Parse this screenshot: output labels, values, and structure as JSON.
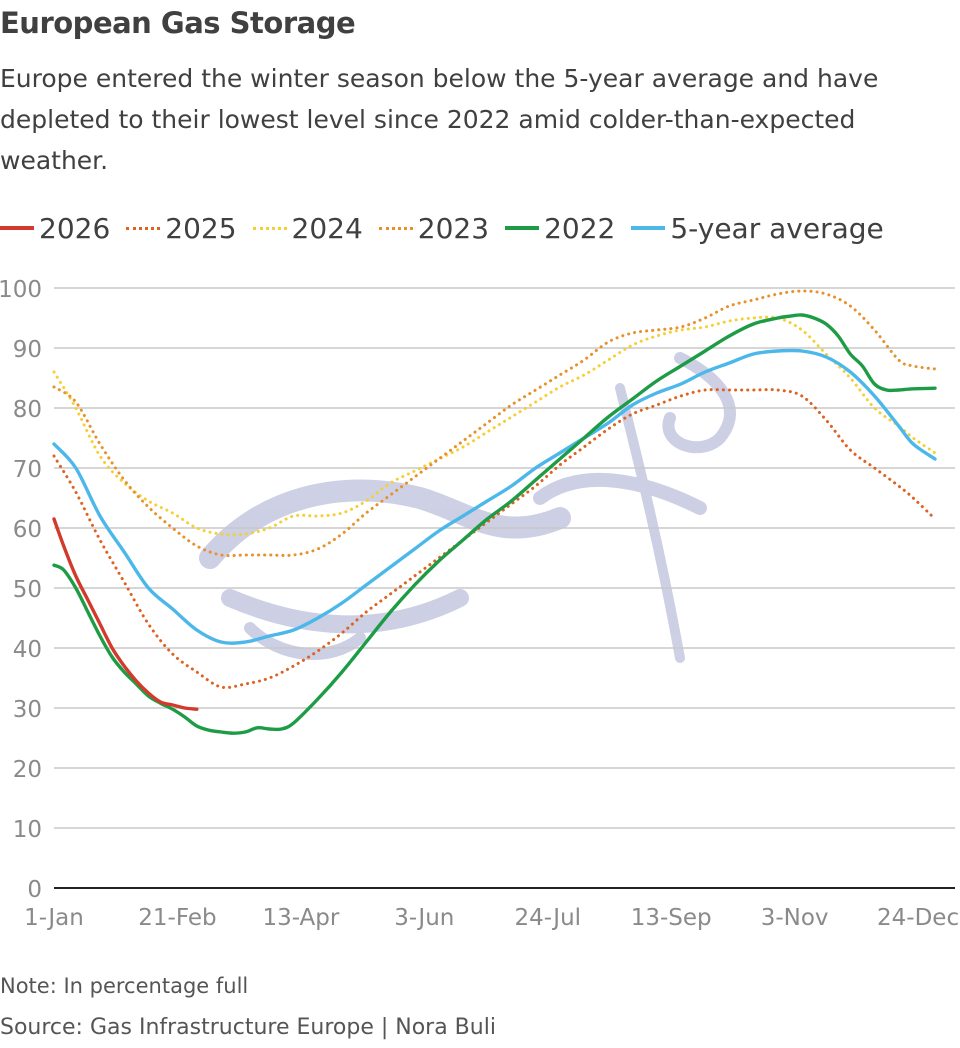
{
  "header": {
    "title": "European Gas Storage",
    "subtitle": "Europe entered the winter season below the 5-year average and have depleted to their lowest level since 2022 amid colder-than-expected weather."
  },
  "footer": {
    "note": "Note: In percentage full",
    "source": "Source: Gas Infrastructure Europe | Nora Buli"
  },
  "chart_data": {
    "type": "line",
    "title": "European Gas Storage",
    "xlabel": "",
    "ylabel": "",
    "unit": "percentage full",
    "xlim": [
      1,
      365
    ],
    "ylim": [
      0,
      100
    ],
    "grid": true,
    "legend_position": "top",
    "x_ticks": [
      {
        "label": "1-Jan",
        "day": 1
      },
      {
        "label": "21-Feb",
        "day": 52
      },
      {
        "label": "13-Apr",
        "day": 103
      },
      {
        "label": "3-Jun",
        "day": 154
      },
      {
        "label": "24-Jul",
        "day": 205
      },
      {
        "label": "13-Sep",
        "day": 256
      },
      {
        "label": "3-Nov",
        "day": 307
      },
      {
        "label": "24-Dec",
        "day": 358
      }
    ],
    "y_ticks": [
      0,
      10,
      20,
      30,
      40,
      50,
      60,
      70,
      80,
      90,
      100
    ],
    "series": [
      {
        "name": "2026",
        "color": "#d33a2c",
        "style": "solid",
        "x": [
          1,
          5,
          10,
          15,
          20,
          25,
          30,
          35,
          40,
          45,
          50,
          55,
          60
        ],
        "y": [
          61.5,
          57,
          52,
          48,
          44,
          40,
          37,
          34.5,
          32.5,
          31,
          30.5,
          30,
          29.8
        ]
      },
      {
        "name": "2025",
        "color": "#de6220",
        "style": "dotted",
        "x": [
          1,
          10,
          20,
          30,
          40,
          50,
          60,
          70,
          80,
          90,
          100,
          110,
          120,
          130,
          140,
          150,
          160,
          170,
          180,
          190,
          200,
          210,
          220,
          230,
          240,
          250,
          260,
          270,
          280,
          290,
          300,
          310,
          320,
          330,
          340,
          350,
          356,
          365
        ],
        "y": [
          72,
          66,
          58,
          51,
          44,
          39,
          36,
          33.5,
          34,
          35,
          37,
          39.5,
          42.5,
          46,
          49,
          52,
          55,
          58,
          61,
          64,
          67,
          70.5,
          73.5,
          76.5,
          79,
          80.5,
          82,
          83,
          83,
          83,
          83,
          82,
          78,
          73,
          70,
          67,
          65,
          61.5
        ]
      },
      {
        "name": "2024",
        "color": "#f5cf36",
        "style": "dotted",
        "x": [
          1,
          10,
          20,
          30,
          40,
          50,
          60,
          70,
          80,
          90,
          100,
          110,
          120,
          130,
          140,
          150,
          160,
          170,
          180,
          190,
          200,
          210,
          220,
          230,
          240,
          250,
          260,
          270,
          280,
          290,
          300,
          310,
          320,
          330,
          340,
          350,
          356,
          365
        ],
        "y": [
          86,
          80,
          72,
          67.5,
          64.5,
          62.5,
          60,
          59,
          59,
          60,
          62,
          62,
          62.5,
          64.5,
          67.5,
          69.5,
          71.5,
          73.5,
          76,
          78.5,
          81,
          83.5,
          85.5,
          88,
          90.5,
          92,
          93,
          93.5,
          94.5,
          95,
          95,
          93,
          89,
          85,
          80,
          77,
          75,
          72.5
        ]
      },
      {
        "name": "2023",
        "color": "#e8912b",
        "style": "dotted",
        "x": [
          1,
          10,
          20,
          30,
          40,
          50,
          60,
          70,
          80,
          90,
          100,
          110,
          120,
          130,
          140,
          150,
          160,
          170,
          180,
          190,
          200,
          210,
          220,
          230,
          240,
          250,
          260,
          270,
          280,
          290,
          300,
          310,
          320,
          330,
          340,
          350,
          356,
          365
        ],
        "y": [
          83.5,
          81,
          74,
          68,
          63.5,
          60,
          57,
          55.5,
          55.5,
          55.5,
          55.5,
          56.5,
          59,
          62.5,
          65.5,
          68.5,
          71.5,
          74.5,
          77.5,
          80.5,
          83,
          85.5,
          88,
          91,
          92.5,
          93,
          93.5,
          95,
          97,
          98,
          99,
          99.5,
          99,
          97,
          93,
          88,
          87,
          86.5
        ]
      },
      {
        "name": "2022",
        "color": "#1d9c45",
        "style": "solid",
        "x": [
          1,
          5,
          10,
          15,
          20,
          25,
          30,
          35,
          40,
          45,
          50,
          55,
          60,
          65,
          70,
          75,
          80,
          85,
          90,
          95,
          100,
          110,
          120,
          130,
          140,
          150,
          160,
          170,
          180,
          190,
          200,
          210,
          220,
          230,
          240,
          250,
          260,
          270,
          280,
          290,
          300,
          305,
          310,
          315,
          320,
          325,
          330,
          335,
          340,
          345,
          350,
          356,
          365
        ],
        "y": [
          53.8,
          53,
          50,
          46,
          42,
          38.5,
          36,
          34,
          32,
          30.8,
          29.8,
          28.5,
          27,
          26.3,
          26,
          25.8,
          26,
          26.7,
          26.5,
          26.5,
          27.5,
          31.5,
          36,
          41,
          46,
          50.5,
          54.5,
          58,
          61.5,
          64.5,
          68,
          71.5,
          75,
          78.5,
          81.5,
          84.5,
          87,
          89.5,
          92,
          94,
          95,
          95.3,
          95.5,
          95,
          94,
          92,
          89,
          87,
          84,
          83,
          83,
          83.2,
          83.3
        ]
      },
      {
        "name": "5-year average",
        "color": "#4cb8ea",
        "style": "solid",
        "x": [
          1,
          10,
          20,
          30,
          40,
          50,
          60,
          70,
          80,
          90,
          100,
          110,
          120,
          130,
          140,
          150,
          160,
          170,
          180,
          190,
          200,
          210,
          220,
          230,
          240,
          250,
          260,
          270,
          280,
          290,
          300,
          310,
          320,
          330,
          340,
          350,
          356,
          365
        ],
        "y": [
          74,
          70,
          62,
          56,
          50,
          46.5,
          43,
          41,
          41,
          42,
          43,
          45,
          47.5,
          50.5,
          53.5,
          56.5,
          59.5,
          62,
          64.5,
          67,
          70,
          72.5,
          75,
          77.5,
          80.5,
          82.5,
          84,
          86,
          87.5,
          89,
          89.5,
          89.5,
          88.5,
          86,
          82,
          77,
          74,
          71.5
        ]
      }
    ]
  }
}
